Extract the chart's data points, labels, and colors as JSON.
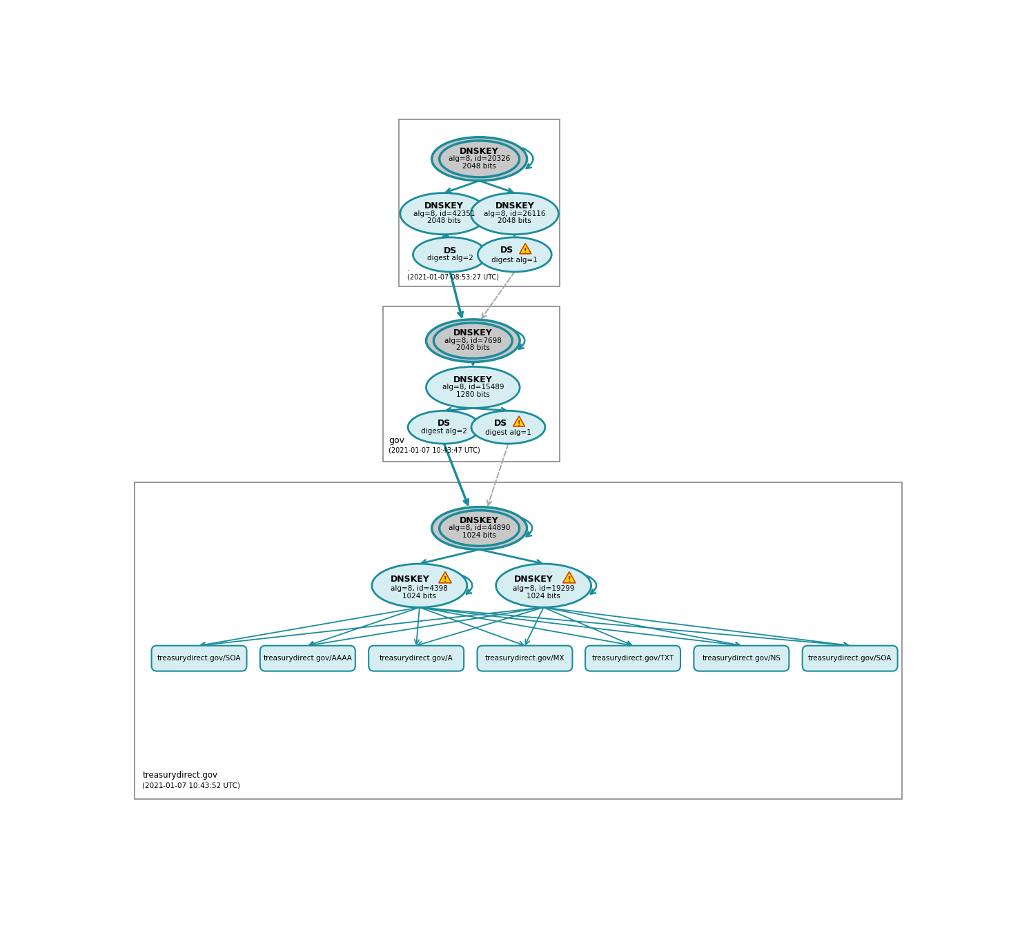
{
  "bg_color": "#ffffff",
  "teal": "#1A8C9C",
  "teal_fill": "#D6EEF2",
  "gray_fill": "#C8C8C8",
  "arrow_color": "#1A8C9C",
  "dashed_arrow_color": "#AAAAAA",
  "zone1_dot": ".",
  "zone1_date": "(2021-01-07 08:53:27 UTC)",
  "zone2_label": "gov",
  "zone2_date": "(2021-01-07 10:43:47 UTC)",
  "zone3_label": "treasurydirect.gov",
  "zone3_date": "(2021-01-07 10:43:52 UTC)",
  "root_ksk_label": "DNSKEY\nalg=8, id=20326\n2048 bits",
  "root_zsk1_label": "DNSKEY\nalg=8, id=42351\n2048 bits",
  "root_zsk2_label": "DNSKEY\nalg=8, id=26116\n2048 bits",
  "root_ds1_label": "DS\ndigest alg=2",
  "root_ds2_label": "DS\ndigest alg=1",
  "gov_ksk_label": "DNSKEY\nalg=8, id=7698\n2048 bits",
  "gov_zsk_label": "DNSKEY\nalg=8, id=15489\n1280 bits",
  "gov_ds1_label": "DS\ndigest alg=2",
  "gov_ds2_label": "DS\ndigest alg=1",
  "td_ksk_label": "DNSKEY\nalg=8, id=44890\n1024 bits",
  "td_zsk1_label": "DNSKEY\nalg=8, id=4398\n1024 bits",
  "td_zsk2_label": "DNSKEY\nalg=8, id=19299\n1024 bits",
  "rrset_labels": [
    "treasurydirect.gov/SOA",
    "treasurydirect.gov/AAAA",
    "treasurydirect.gov/A",
    "treasurydirect.gov/MX",
    "treasurydirect.gov/TXT",
    "treasurydirect.gov/NS",
    "treasurydirect.gov/SOA"
  ]
}
